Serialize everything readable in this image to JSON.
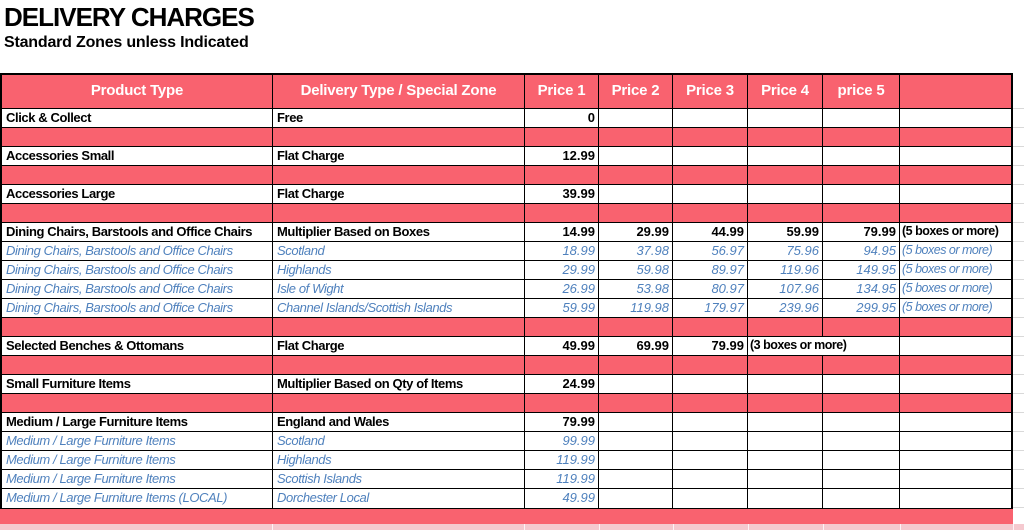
{
  "title": "DELIVERY CHARGES",
  "subtitle": "Standard Zones unless Indicated",
  "colors": {
    "pink": "#F9626F",
    "blue": "#4F81BD",
    "strip_pink": "#F5C9CF",
    "header_text": "#FFFFFF",
    "border": "#000000"
  },
  "table": {
    "columns": [
      "Product Type",
      "Delivery Type / Special Zone",
      "Price 1",
      "Price 2",
      "Price 3",
      "Price 4",
      "price 5",
      ""
    ],
    "rows": [
      {
        "style": "bold",
        "product": "Click & Collect",
        "zone": "Free",
        "prices": [
          "0",
          "",
          "",
          "",
          ""
        ],
        "note": ""
      },
      {
        "style": "sep"
      },
      {
        "style": "bold",
        "product": "Accessories Small",
        "zone": "Flat Charge",
        "prices": [
          "12.99",
          "",
          "",
          "",
          ""
        ],
        "note": ""
      },
      {
        "style": "sep"
      },
      {
        "style": "bold",
        "product": "Accessories Large",
        "zone": "Flat Charge",
        "prices": [
          "39.99",
          "",
          "",
          "",
          ""
        ],
        "note": ""
      },
      {
        "style": "sep"
      },
      {
        "style": "bold",
        "product": "Dining Chairs, Barstools and Office Chairs",
        "zone": "Multiplier Based on Boxes",
        "prices": [
          "14.99",
          "29.99",
          "44.99",
          "59.99",
          "79.99"
        ],
        "note": "(5 boxes or more)"
      },
      {
        "style": "blue",
        "product": "Dining Chairs, Barstools and Office Chairs",
        "zone": "Scotland",
        "prices": [
          "18.99",
          "37.98",
          "56.97",
          "75.96",
          "94.95"
        ],
        "note": "(5 boxes or more)"
      },
      {
        "style": "blue",
        "product": "Dining Chairs, Barstools and Office Chairs",
        "zone": "Highlands",
        "prices": [
          "29.99",
          "59.98",
          "89.97",
          "119.96",
          "149.95"
        ],
        "note": "(5 boxes or more)"
      },
      {
        "style": "blue",
        "product": "Dining Chairs, Barstools and Office Chairs",
        "zone": "Isle of Wight",
        "prices": [
          "26.99",
          "53.98",
          "80.97",
          "107.96",
          "134.95"
        ],
        "note": "(5 boxes or more)"
      },
      {
        "style": "blue",
        "product": "Dining Chairs, Barstools and Office Chairs",
        "zone": "Channel Islands/Scottish Islands",
        "prices": [
          "59.99",
          "119.98",
          "179.97",
          "239.96",
          "299.95"
        ],
        "note": "(5 boxes or more)"
      },
      {
        "style": "sep"
      },
      {
        "style": "bold",
        "product": "Selected Benches & Ottomans",
        "zone": "Flat Charge",
        "prices": [
          "49.99",
          "69.99",
          "79.99"
        ],
        "span_note": "(3 boxes or more)",
        "note": ""
      },
      {
        "style": "sep"
      },
      {
        "style": "bold",
        "product": "Small Furniture Items",
        "zone": "Multiplier Based on Qty of Items",
        "prices": [
          "24.99",
          "",
          "",
          "",
          ""
        ],
        "note": ""
      },
      {
        "style": "sep"
      },
      {
        "style": "bold",
        "product": "Medium / Large Furniture Items",
        "zone": "England and Wales",
        "prices": [
          "79.99",
          "",
          "",
          "",
          ""
        ],
        "note": ""
      },
      {
        "style": "blue",
        "product": "Medium / Large Furniture Items",
        "zone": "Scotland",
        "prices": [
          "99.99",
          "",
          "",
          "",
          ""
        ],
        "note": ""
      },
      {
        "style": "blue",
        "product": "Medium / Large Furniture Items",
        "zone": "Highlands",
        "prices": [
          "119.99",
          "",
          "",
          "",
          ""
        ],
        "note": ""
      },
      {
        "style": "blue",
        "product": "Medium / Large Furniture Items",
        "zone": "Scottish Islands",
        "prices": [
          "119.99",
          "",
          "",
          "",
          ""
        ],
        "note": ""
      },
      {
        "style": "blue",
        "product": "Medium / Large Furniture Items (LOCAL)",
        "zone": "Dorchester Local",
        "prices": [
          "49.99",
          "",
          "",
          "",
          ""
        ],
        "note": ""
      }
    ]
  }
}
